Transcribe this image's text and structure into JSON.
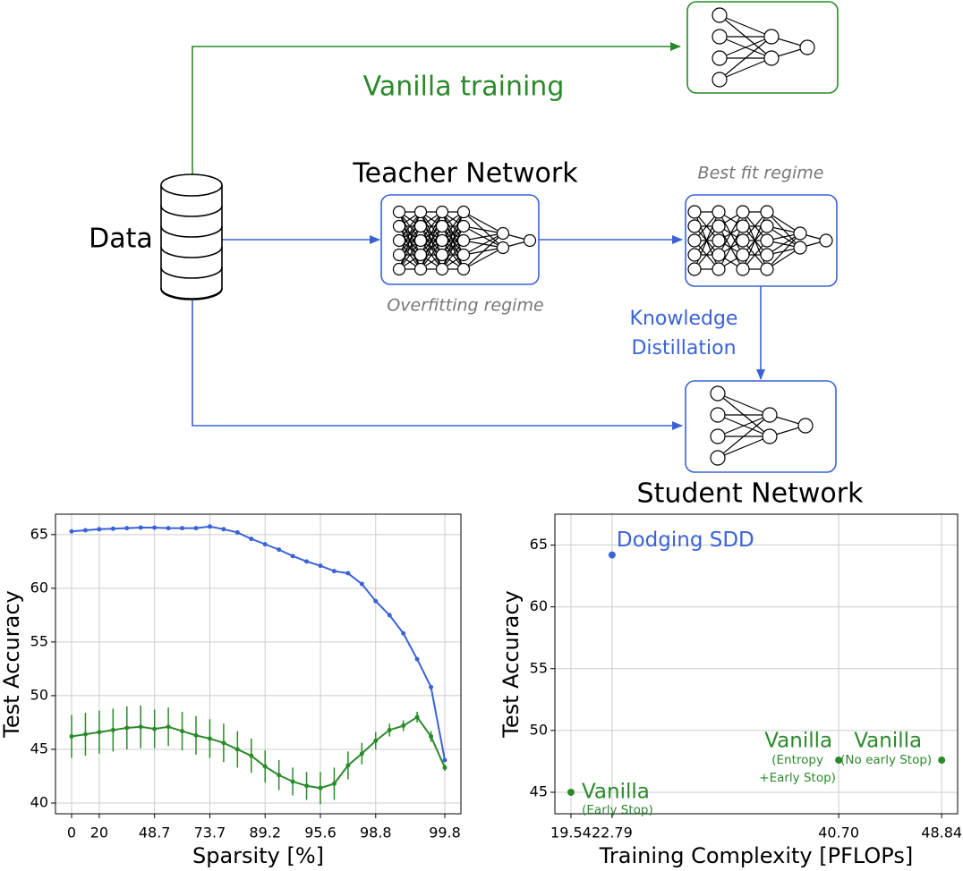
{
  "diagram": {
    "data_label": "Data",
    "vanilla_training": "Vanilla training",
    "teacher_title": "Teacher Network",
    "overfitting": "Overfitting regime",
    "best_fit": "Best fit regime",
    "kd_line1": "Knowledge",
    "kd_line2": "Distillation",
    "student_title": "Student Network"
  },
  "chart_data": [
    {
      "type": "line",
      "ylabel": "Test Accuracy",
      "xlabel": "Sparsity [%]",
      "categories": [
        "0",
        null,
        "20",
        null,
        null,
        null,
        "48.7",
        null,
        null,
        null,
        "73.7",
        null,
        null,
        null,
        "89.2",
        null,
        null,
        null,
        "95.6",
        null,
        null,
        null,
        "98.8",
        null,
        null,
        null,
        null,
        "99.8"
      ],
      "ylim": [
        39,
        66.9
      ],
      "yticks": [
        40,
        45,
        50,
        55,
        60,
        65
      ],
      "grid": true,
      "series": [
        {
          "color": "#3a62d6",
          "values": [
            65.3,
            65.4,
            65.5,
            65.55,
            65.6,
            65.65,
            65.65,
            65.6,
            65.6,
            65.6,
            65.75,
            65.5,
            65.2,
            64.6,
            64.1,
            63.6,
            63.0,
            62.5,
            62.1,
            61.6,
            61.4,
            60.4,
            58.8,
            57.5,
            55.8,
            53.4,
            50.8,
            44.0
          ]
        },
        {
          "color": "#2a8a2a",
          "values": [
            46.2,
            46.4,
            46.6,
            46.8,
            47.0,
            47.1,
            46.9,
            47.1,
            46.7,
            46.3,
            46.0,
            45.6,
            45.0,
            44.4,
            43.4,
            42.6,
            42.0,
            41.6,
            41.4,
            41.8,
            43.5,
            44.6,
            45.8,
            46.8,
            47.2,
            48.0,
            46.2,
            43.3
          ],
          "errors": [
            2.0,
            2.0,
            2.0,
            2.0,
            2.0,
            2.0,
            1.8,
            1.8,
            1.8,
            1.8,
            1.8,
            1.8,
            1.7,
            1.6,
            1.5,
            1.4,
            1.3,
            1.3,
            1.5,
            1.5,
            1.3,
            1.0,
            0.8,
            0.6,
            0.5,
            0.5,
            0.5,
            0.3
          ]
        }
      ]
    },
    {
      "type": "scatter",
      "ylabel": "Test Accuracy",
      "xlabel": "Training Complexity [PFLOPs]",
      "xlim": [
        18.27,
        50.1
      ],
      "xticks": [
        19.54,
        22.79,
        {
          "value": 40.7,
          "label": "40.70"
        },
        48.84
      ],
      "ylim": [
        43.26,
        67.5
      ],
      "yticks": [
        45,
        50,
        55,
        60,
        65
      ],
      "grid": true,
      "points": [
        {
          "x": 19.54,
          "y": 45.0,
          "label": "Vanilla",
          "note": [
            "(Early Stop)"
          ],
          "color": "#2a8a2a"
        },
        {
          "x": 22.79,
          "y": 64.2,
          "label": "Dodging SDD",
          "color": "#3a62d6"
        },
        {
          "x": 40.7,
          "y": 47.6,
          "label": "Vanilla",
          "note": [
            "(Entropy",
            "+Early Stop)"
          ],
          "color": "#2a8a2a"
        },
        {
          "x": 48.84,
          "y": 47.6,
          "label": "Vanilla",
          "note": [
            "(No early Stop)"
          ],
          "color": "#2a8a2a"
        }
      ]
    }
  ]
}
